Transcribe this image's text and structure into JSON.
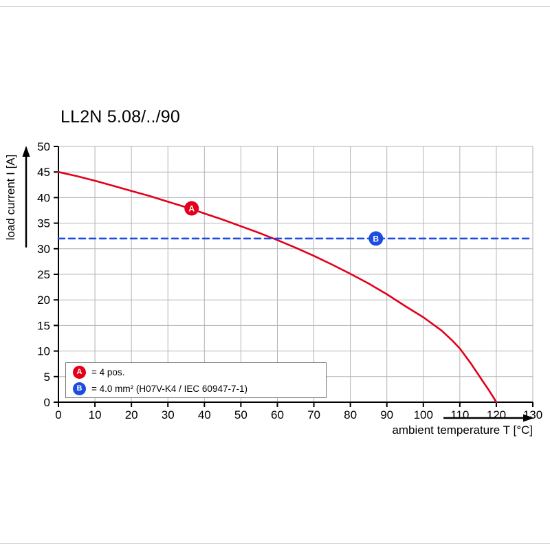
{
  "chart_data": {
    "type": "line",
    "title": "LL2N 5.08/../90",
    "xlabel": "ambient temperature T [°C]",
    "ylabel": "load current I [A]",
    "xlim": [
      0,
      130
    ],
    "ylim": [
      0,
      50
    ],
    "xticks": [
      0,
      10,
      20,
      30,
      40,
      50,
      60,
      70,
      80,
      90,
      100,
      110,
      120,
      130
    ],
    "yticks": [
      0,
      5,
      10,
      15,
      20,
      25,
      30,
      35,
      40,
      45,
      50
    ],
    "grid": true,
    "legend_position": "bottom-left-inside",
    "colors": {
      "curve": "#e2001a",
      "threshold": "#1d4ce0",
      "grid": "#b3b3b3",
      "axis": "#000000"
    },
    "series": [
      {
        "name": "A",
        "kind": "derating-curve",
        "color": "#e2001a",
        "style": "solid",
        "points": [
          [
            0,
            45
          ],
          [
            5,
            44.2
          ],
          [
            10,
            43.3
          ],
          [
            15,
            42.3
          ],
          [
            20,
            41.3
          ],
          [
            25,
            40.3
          ],
          [
            30,
            39.2
          ],
          [
            35,
            38.1
          ],
          [
            40,
            36.9
          ],
          [
            45,
            35.7
          ],
          [
            50,
            34.4
          ],
          [
            55,
            33.1
          ],
          [
            60,
            31.7
          ],
          [
            65,
            30.2
          ],
          [
            70,
            28.6
          ],
          [
            75,
            26.9
          ],
          [
            80,
            25.1
          ],
          [
            85,
            23.2
          ],
          [
            90,
            21.1
          ],
          [
            95,
            18.8
          ],
          [
            100,
            16.6
          ],
          [
            105,
            14.0
          ],
          [
            108,
            12.0
          ],
          [
            110,
            10.5
          ],
          [
            113,
            7.6
          ],
          [
            116,
            4.4
          ],
          [
            118,
            2.3
          ],
          [
            119.5,
            0.6
          ],
          [
            120,
            0
          ]
        ]
      },
      {
        "name": "B",
        "kind": "threshold-line",
        "color": "#1d4ce0",
        "style": "dashed",
        "value": 32,
        "points": [
          [
            0,
            32
          ],
          [
            130,
            32
          ]
        ]
      }
    ],
    "markers": [
      {
        "label": "A",
        "x": 36.5,
        "y": 37.9,
        "color": "#e2001a"
      },
      {
        "label": "B",
        "x": 87,
        "y": 32,
        "color": "#1d4ce0"
      }
    ],
    "legend": [
      {
        "label": "A",
        "color": "#e2001a",
        "text": "= 4 pos."
      },
      {
        "label": "B",
        "color": "#1d4ce0",
        "text": "= 4.0 mm² (H07V-K4 / IEC 60947-7-1)"
      }
    ]
  }
}
